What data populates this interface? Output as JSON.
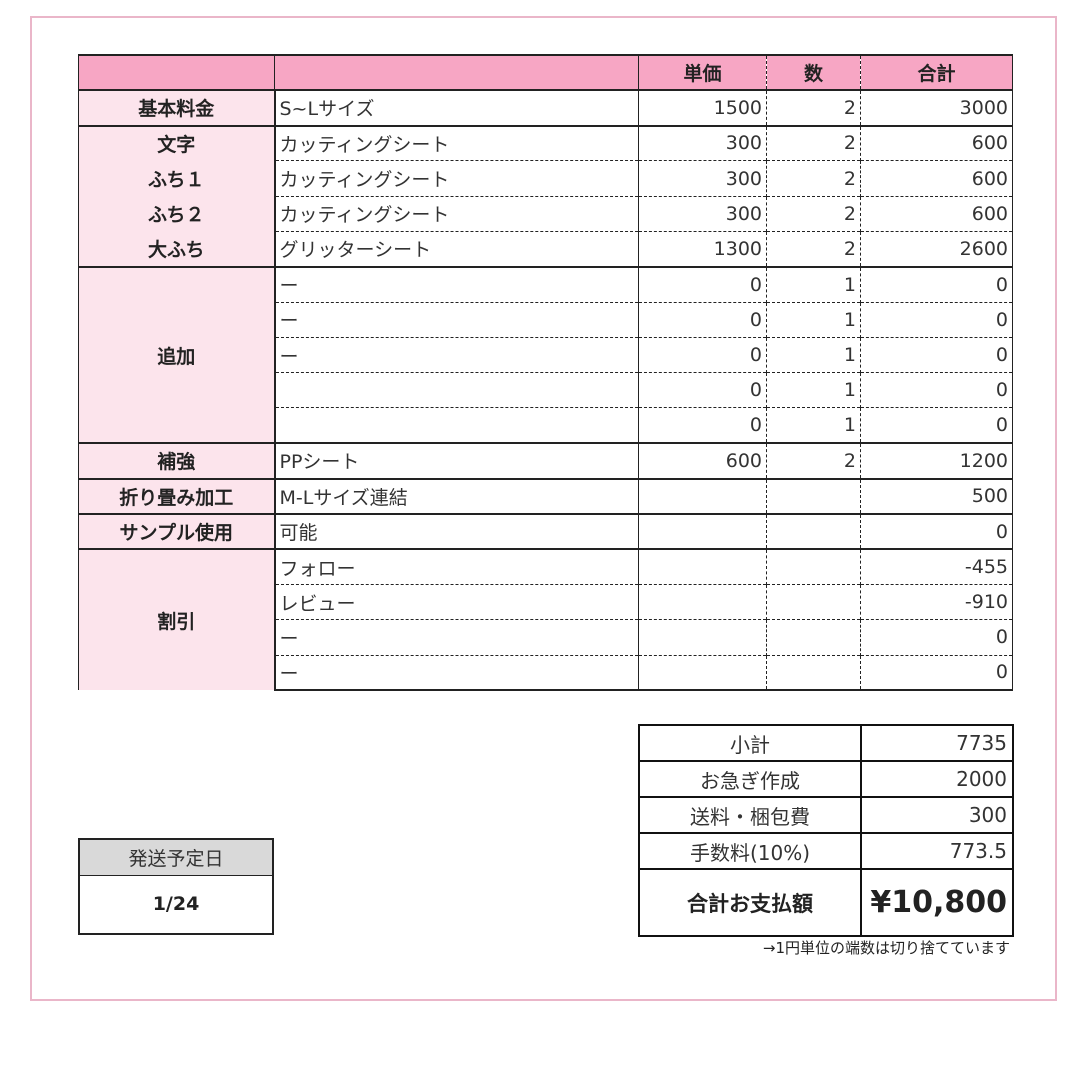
{
  "header": {
    "label": "",
    "desc": "",
    "unit_price": "単価",
    "qty": "数",
    "total": "合計"
  },
  "groups": [
    {
      "label": "基本料金",
      "rows": [
        {
          "desc": "S~Lサイズ",
          "price": "1500",
          "qty": "2",
          "total": "3000"
        }
      ]
    },
    {
      "labels": [
        "文字",
        "ふち１",
        "ふち２",
        "大ふち"
      ],
      "rows": [
        {
          "desc": "カッティングシート",
          "price": "300",
          "qty": "2",
          "total": "600"
        },
        {
          "desc": "カッティングシート",
          "price": "300",
          "qty": "2",
          "total": "600"
        },
        {
          "desc": "カッティングシート",
          "price": "300",
          "qty": "2",
          "total": "600"
        },
        {
          "desc": "グリッターシート",
          "price": "1300",
          "qty": "2",
          "total": "2600"
        }
      ]
    },
    {
      "label": "追加",
      "rows": [
        {
          "desc": "ー",
          "price": "0",
          "qty": "1",
          "total": "0"
        },
        {
          "desc": "ー",
          "price": "0",
          "qty": "1",
          "total": "0"
        },
        {
          "desc": "ー",
          "price": "0",
          "qty": "1",
          "total": "0"
        },
        {
          "desc": "",
          "price": "0",
          "qty": "1",
          "total": "0"
        },
        {
          "desc": "",
          "price": "0",
          "qty": "1",
          "total": "0"
        }
      ]
    },
    {
      "label": "補強",
      "rows": [
        {
          "desc": "PPシート",
          "price": "600",
          "qty": "2",
          "total": "1200"
        }
      ]
    },
    {
      "label": "折り畳み加工",
      "rows": [
        {
          "desc": "M-Lサイズ連結",
          "price": "",
          "qty": "",
          "total": "500"
        }
      ]
    },
    {
      "label": "サンプル使用",
      "rows": [
        {
          "desc": "可能",
          "price": "",
          "qty": "",
          "total": "0"
        }
      ]
    },
    {
      "label": "割引",
      "rows": [
        {
          "desc": "フォロー",
          "price": "",
          "qty": "",
          "total": "-455"
        },
        {
          "desc": "レビュー",
          "price": "",
          "qty": "",
          "total": "-910"
        },
        {
          "desc": "ー",
          "price": "",
          "qty": "",
          "total": "0"
        },
        {
          "desc": "ー",
          "price": "",
          "qty": "",
          "total": "0"
        }
      ]
    }
  ],
  "summary": [
    {
      "label": "小計",
      "value": "7735"
    },
    {
      "label": "お急ぎ作成",
      "value": "2000"
    },
    {
      "label": "送料・梱包費",
      "value": "300"
    },
    {
      "label": "手数料(10%)",
      "value": "773.5"
    },
    {
      "label": "合計お支払額",
      "value": "¥10,800"
    }
  ],
  "note": "→1円単位の端数は切り捨てています",
  "shipping": {
    "label": "発送予定日",
    "value": "1/24"
  },
  "colors": {
    "header": "#f7a6c4",
    "label_bg": "#fce4ec",
    "frame": "#eab6c9",
    "ship_header": "#d9d9d9"
  }
}
